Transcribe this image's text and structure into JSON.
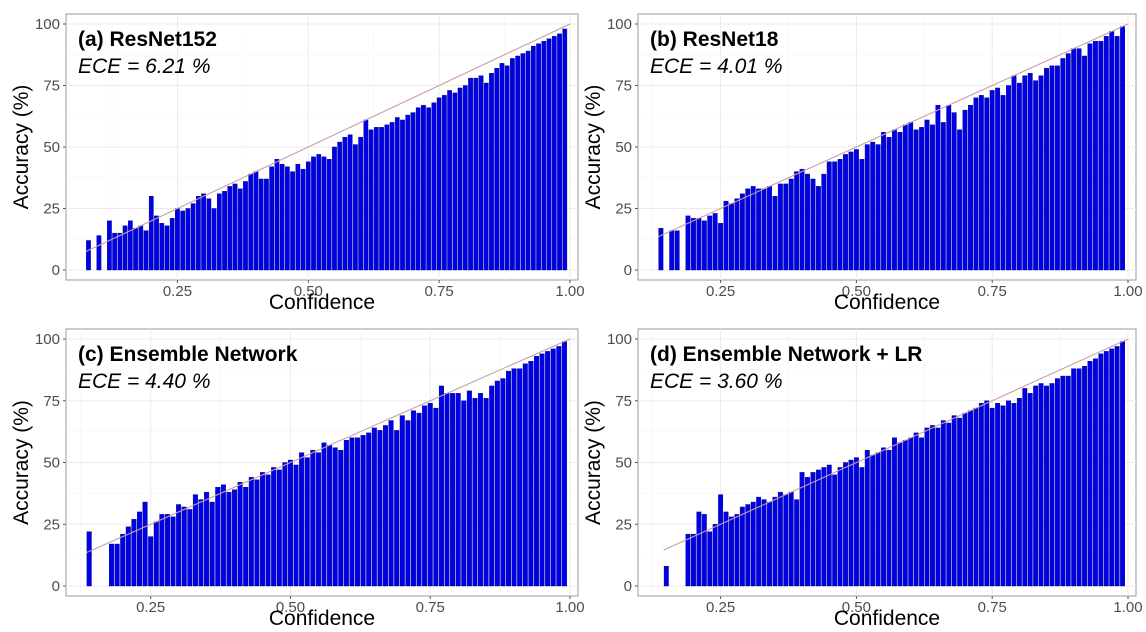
{
  "figure": {
    "xlabel": "Confidence",
    "ylabel": "Accuracy (%)"
  },
  "colors": {
    "bar": "#0000e6",
    "bar_edge": "#00008b",
    "diagonal": "#c8a0a8",
    "grid": "#ebebeb",
    "frame": "#9a9a9a"
  },
  "chart_data": [
    {
      "type": "bar",
      "title": "(a) ResNet152",
      "subtitle": "ECE = 6.21 %",
      "xlabel": "Confidence",
      "ylabel": "Accuracy (%)",
      "xlim": [
        0.06,
        1.0
      ],
      "ylim": [
        0,
        100
      ],
      "xticks": [
        "0.25",
        "0.50",
        "0.75",
        "1.00"
      ],
      "yticks": [
        "0",
        "25",
        "50",
        "75",
        "100"
      ],
      "grid": true,
      "reference_line": "y = x",
      "x": [
        0.08,
        0.1,
        0.12,
        0.13,
        0.14,
        0.15,
        0.16,
        0.17,
        0.18,
        0.19,
        0.2,
        0.21,
        0.22,
        0.23,
        0.24,
        0.25,
        0.26,
        0.27,
        0.28,
        0.29,
        0.3,
        0.31,
        0.32,
        0.33,
        0.34,
        0.35,
        0.36,
        0.37,
        0.38,
        0.39,
        0.4,
        0.41,
        0.42,
        0.43,
        0.44,
        0.45,
        0.46,
        0.47,
        0.48,
        0.49,
        0.5,
        0.51,
        0.52,
        0.53,
        0.54,
        0.55,
        0.56,
        0.57,
        0.58,
        0.59,
        0.6,
        0.61,
        0.62,
        0.63,
        0.64,
        0.65,
        0.66,
        0.67,
        0.68,
        0.69,
        0.7,
        0.71,
        0.72,
        0.73,
        0.74,
        0.75,
        0.76,
        0.77,
        0.78,
        0.79,
        0.8,
        0.81,
        0.82,
        0.83,
        0.84,
        0.85,
        0.86,
        0.87,
        0.88,
        0.89,
        0.9,
        0.91,
        0.92,
        0.93,
        0.94,
        0.95,
        0.96,
        0.97,
        0.98,
        0.99
      ],
      "values": [
        12,
        14,
        20,
        15,
        15,
        18,
        20,
        17,
        18,
        16,
        30,
        22,
        19,
        18,
        21,
        25,
        24,
        25,
        27,
        30,
        31,
        29,
        25,
        31,
        32,
        34,
        35,
        33,
        36,
        39,
        40,
        37,
        37,
        42,
        45,
        43,
        42,
        40,
        43,
        41,
        44,
        46,
        47,
        46,
        45,
        50,
        52,
        54,
        55,
        51,
        54,
        61,
        57,
        58,
        58,
        59,
        60,
        62,
        61,
        63,
        64,
        66,
        67,
        66,
        68,
        70,
        71,
        73,
        72,
        74,
        75,
        78,
        78,
        79,
        76,
        80,
        82,
        84,
        83,
        86,
        87,
        88,
        89,
        91,
        92,
        93,
        94,
        95,
        96,
        98
      ]
    },
    {
      "type": "bar",
      "title": "(b) ResNet18",
      "subtitle": "ECE = 4.01 %",
      "xlabel": "Confidence",
      "ylabel": "Accuracy (%)",
      "xlim": [
        0.12,
        1.0
      ],
      "ylim": [
        0,
        100
      ],
      "xticks": [
        "0.25",
        "0.50",
        "0.75",
        "1.00"
      ],
      "yticks": [
        "0",
        "25",
        "50",
        "75",
        "100"
      ],
      "grid": true,
      "reference_line": "y = x",
      "x": [
        0.14,
        0.16,
        0.17,
        0.19,
        0.2,
        0.21,
        0.22,
        0.23,
        0.24,
        0.25,
        0.26,
        0.27,
        0.28,
        0.29,
        0.3,
        0.31,
        0.32,
        0.33,
        0.34,
        0.35,
        0.36,
        0.37,
        0.38,
        0.39,
        0.4,
        0.41,
        0.42,
        0.43,
        0.44,
        0.45,
        0.46,
        0.47,
        0.48,
        0.49,
        0.5,
        0.51,
        0.52,
        0.53,
        0.54,
        0.55,
        0.56,
        0.57,
        0.58,
        0.59,
        0.6,
        0.61,
        0.62,
        0.63,
        0.64,
        0.65,
        0.66,
        0.67,
        0.68,
        0.69,
        0.7,
        0.71,
        0.72,
        0.73,
        0.74,
        0.75,
        0.76,
        0.77,
        0.78,
        0.79,
        0.8,
        0.81,
        0.82,
        0.83,
        0.84,
        0.85,
        0.86,
        0.87,
        0.88,
        0.89,
        0.9,
        0.91,
        0.92,
        0.93,
        0.94,
        0.95,
        0.96,
        0.97,
        0.98,
        0.99
      ],
      "values": [
        17,
        16,
        16,
        22,
        21,
        21,
        20,
        22,
        23,
        19,
        28,
        27,
        29,
        31,
        33,
        34,
        33,
        33,
        34,
        30,
        35,
        35,
        37,
        40,
        41,
        39,
        37,
        34,
        39,
        44,
        44,
        45,
        47,
        48,
        49,
        45,
        51,
        52,
        51,
        56,
        54,
        57,
        56,
        59,
        60,
        57,
        58,
        61,
        59,
        67,
        60,
        67,
        64,
        57,
        65,
        67,
        70,
        71,
        70,
        73,
        74,
        71,
        75,
        79,
        76,
        79,
        80,
        77,
        79,
        82,
        83,
        83,
        86,
        88,
        90,
        90,
        87,
        92,
        93,
        93,
        95,
        97,
        95,
        99
      ]
    },
    {
      "type": "bar",
      "title": "(c) Ensemble Network",
      "subtitle": "ECE = 4.40 %",
      "xlabel": "Confidence",
      "ylabel": "Accuracy (%)",
      "xlim": [
        0.12,
        1.0
      ],
      "ylim": [
        0,
        100
      ],
      "xticks": [
        "0.25",
        "0.50",
        "0.75",
        "1.00"
      ],
      "yticks": [
        "0",
        "25",
        "50",
        "75",
        "100"
      ],
      "grid": true,
      "reference_line": "y = x",
      "x": [
        0.14,
        0.18,
        0.19,
        0.2,
        0.21,
        0.22,
        0.23,
        0.24,
        0.25,
        0.26,
        0.27,
        0.28,
        0.29,
        0.3,
        0.31,
        0.32,
        0.33,
        0.34,
        0.35,
        0.36,
        0.37,
        0.38,
        0.39,
        0.4,
        0.41,
        0.42,
        0.43,
        0.44,
        0.45,
        0.46,
        0.47,
        0.48,
        0.49,
        0.5,
        0.51,
        0.52,
        0.53,
        0.54,
        0.55,
        0.56,
        0.57,
        0.58,
        0.59,
        0.6,
        0.61,
        0.62,
        0.63,
        0.64,
        0.65,
        0.66,
        0.67,
        0.68,
        0.69,
        0.7,
        0.71,
        0.72,
        0.73,
        0.74,
        0.75,
        0.76,
        0.77,
        0.78,
        0.79,
        0.8,
        0.81,
        0.82,
        0.83,
        0.84,
        0.85,
        0.86,
        0.87,
        0.88,
        0.89,
        0.9,
        0.91,
        0.92,
        0.93,
        0.94,
        0.95,
        0.96,
        0.97,
        0.98,
        0.99
      ],
      "values": [
        22,
        17,
        17,
        21,
        24,
        27,
        30,
        34,
        20,
        26,
        29,
        29,
        28,
        33,
        32,
        31,
        37,
        35,
        38,
        34,
        40,
        41,
        38,
        39,
        42,
        40,
        44,
        43,
        46,
        45,
        48,
        47,
        50,
        51,
        49,
        54,
        52,
        55,
        54,
        58,
        57,
        56,
        55,
        59,
        60,
        60,
        61,
        62,
        64,
        63,
        65,
        67,
        63,
        69,
        67,
        71,
        70,
        73,
        74,
        72,
        81,
        78,
        78,
        78,
        75,
        79,
        76,
        78,
        76,
        81,
        83,
        84,
        87,
        88,
        88,
        90,
        91,
        93,
        94,
        95,
        96,
        97,
        99
      ]
    },
    {
      "type": "bar",
      "title": "(d) Ensemble Network + LR",
      "subtitle": "ECE = 3.60 %",
      "xlabel": "Confidence",
      "ylabel": "Accuracy (%)",
      "xlim": [
        0.12,
        1.0
      ],
      "ylim": [
        0,
        100
      ],
      "xticks": [
        "0.25",
        "0.50",
        "0.75",
        "1.00"
      ],
      "yticks": [
        "0",
        "25",
        "50",
        "75",
        "100"
      ],
      "grid": true,
      "reference_line": "y = x",
      "x": [
        0.15,
        0.19,
        0.2,
        0.21,
        0.22,
        0.23,
        0.24,
        0.25,
        0.26,
        0.27,
        0.28,
        0.29,
        0.3,
        0.31,
        0.32,
        0.33,
        0.34,
        0.35,
        0.36,
        0.37,
        0.38,
        0.39,
        0.4,
        0.41,
        0.42,
        0.43,
        0.44,
        0.45,
        0.46,
        0.47,
        0.48,
        0.49,
        0.5,
        0.51,
        0.52,
        0.53,
        0.54,
        0.55,
        0.56,
        0.57,
        0.58,
        0.59,
        0.6,
        0.61,
        0.62,
        0.63,
        0.64,
        0.65,
        0.66,
        0.67,
        0.68,
        0.69,
        0.7,
        0.71,
        0.72,
        0.73,
        0.74,
        0.75,
        0.76,
        0.77,
        0.78,
        0.79,
        0.8,
        0.81,
        0.82,
        0.83,
        0.84,
        0.85,
        0.86,
        0.87,
        0.88,
        0.89,
        0.9,
        0.91,
        0.92,
        0.93,
        0.94,
        0.95,
        0.96,
        0.97,
        0.98,
        0.99
      ],
      "values": [
        8,
        21,
        21,
        30,
        29,
        22,
        25,
        37,
        30,
        28,
        29,
        32,
        33,
        34,
        36,
        35,
        34,
        36,
        38,
        37,
        38,
        35,
        46,
        44,
        46,
        47,
        48,
        49,
        45,
        48,
        50,
        51,
        52,
        48,
        55,
        53,
        54,
        56,
        55,
        60,
        58,
        59,
        60,
        62,
        60,
        64,
        65,
        64,
        67,
        66,
        69,
        68,
        70,
        71,
        72,
        74,
        75,
        72,
        74,
        73,
        75,
        74,
        76,
        80,
        78,
        81,
        82,
        81,
        82,
        84,
        85,
        85,
        88,
        88,
        89,
        91,
        92,
        94,
        95,
        96,
        97,
        99
      ]
    }
  ]
}
